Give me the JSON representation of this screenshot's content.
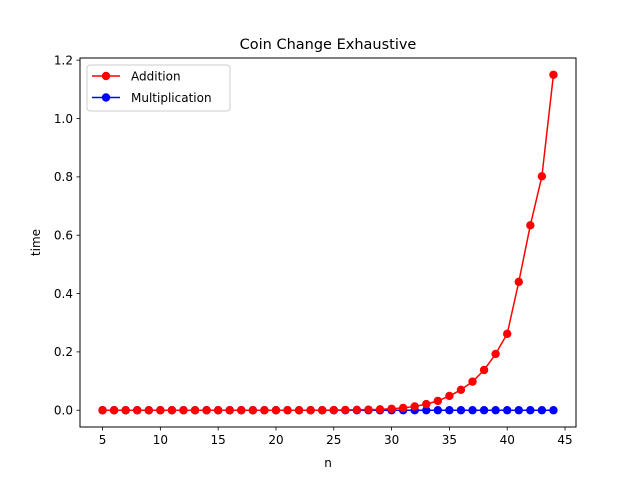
{
  "chart_data": {
    "type": "line",
    "title": "Coin Change Exhaustive",
    "xlabel": "n",
    "ylabel": "time",
    "xlim": [
      3.05,
      45.95
    ],
    "ylim": [
      -0.0575,
      1.2075
    ],
    "xticks": [
      5,
      10,
      15,
      20,
      25,
      30,
      35,
      40,
      45
    ],
    "yticks": [
      0.0,
      0.2,
      0.4,
      0.6,
      0.8,
      1.0,
      1.2
    ],
    "ytick_labels": [
      "0.0",
      "0.2",
      "0.4",
      "0.6",
      "0.8",
      "1.0",
      "1.2"
    ],
    "grid": false,
    "legend_position": "top-left",
    "x": [
      5,
      6,
      7,
      8,
      9,
      10,
      11,
      12,
      13,
      14,
      15,
      16,
      17,
      18,
      19,
      20,
      21,
      22,
      23,
      24,
      25,
      26,
      27,
      28,
      29,
      30,
      31,
      32,
      33,
      34,
      35,
      36,
      37,
      38,
      39,
      40,
      41,
      42,
      43,
      44
    ],
    "series": [
      {
        "name": "Addition",
        "color": "#ff0000",
        "values": [
          0,
          0,
          0,
          0,
          0,
          0,
          0,
          0,
          0,
          0,
          0,
          0,
          0,
          0,
          0,
          0,
          0,
          0,
          0,
          0,
          0.0005,
          0.001,
          0.0015,
          0.002,
          0.003,
          0.005,
          0.008,
          0.013,
          0.021,
          0.032,
          0.049,
          0.07,
          0.098,
          0.138,
          0.193,
          0.262,
          0.44,
          0.634,
          0.802,
          1.15
        ]
      },
      {
        "name": "Multiplication",
        "color": "#0000ff",
        "values": [
          0,
          0,
          0,
          0,
          0,
          0,
          0,
          0,
          0,
          0,
          0,
          0,
          0,
          0,
          0,
          0,
          0,
          0,
          0,
          0,
          0,
          0,
          0,
          0,
          0,
          0,
          0,
          0,
          0,
          0,
          0,
          0,
          0,
          0,
          0,
          0,
          0,
          0,
          0,
          0
        ]
      }
    ]
  }
}
